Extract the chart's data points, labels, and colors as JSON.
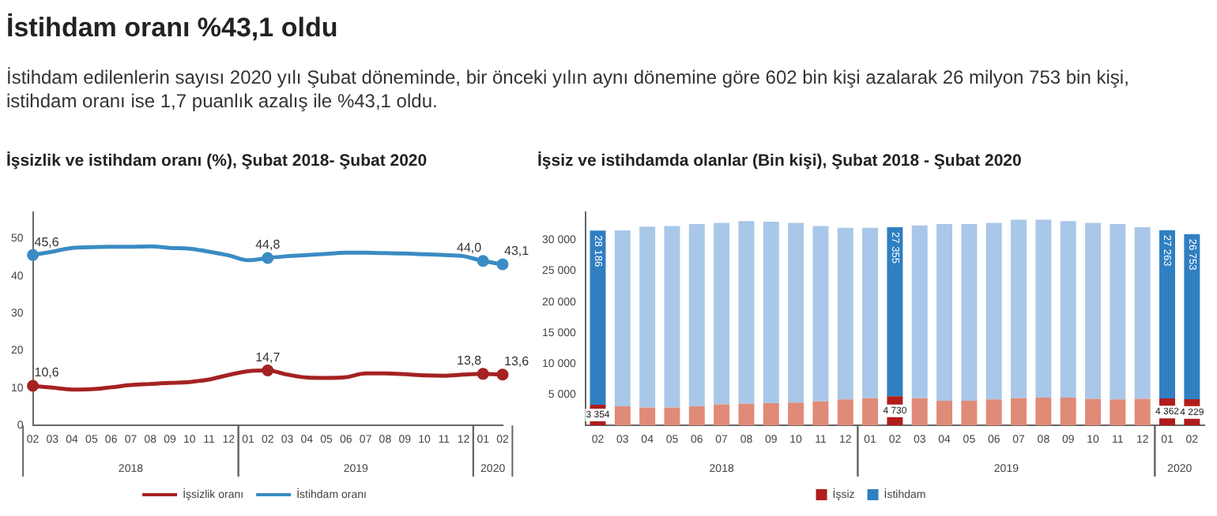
{
  "chart_data": [
    {
      "type": "other",
      "title": "İstihdam oranı %43,1 oldu",
      "annotations": [
        "İstihdam edilenlerin sayısı 2020 yılı Şubat döneminde, bir önceki yılın aynı dönemine göre 602 bin kişi azalarak 26 milyon 753 bin kişi, istihdam oranı ise 1,7 puanlık azalış ile %43,1 oldu."
      ]
    },
    {
      "type": "line",
      "title": "İşsizlik ve istihdam oranı (%), Şubat 2018- Şubat 2020",
      "categories": [
        "02",
        "03",
        "04",
        "05",
        "06",
        "07",
        "08",
        "09",
        "10",
        "11",
        "12",
        "01",
        "02",
        "03",
        "04",
        "05",
        "06",
        "07",
        "08",
        "09",
        "10",
        "11",
        "12",
        "01",
        "02"
      ],
      "annotations": [
        "2018",
        "2019",
        "2020"
      ],
      "legend": "bottom",
      "ylim": [
        0,
        57
      ],
      "yticks": [
        0,
        10,
        20,
        30,
        40,
        50
      ],
      "series": [
        {
          "name": "İşsizlik oranı",
          "color": "#a52222",
          "values": [
            10.6,
            10.1,
            9.6,
            9.7,
            10.2,
            10.8,
            11.1,
            11.4,
            11.6,
            12.3,
            13.5,
            14.5,
            14.7,
            13.6,
            12.8,
            12.7,
            12.9,
            13.9,
            13.9,
            13.7,
            13.4,
            13.3,
            13.6,
            13.8,
            13.6
          ],
          "value_labels": [
            "10,6",
            null,
            null,
            null,
            null,
            null,
            null,
            null,
            null,
            null,
            null,
            null,
            "14,7",
            null,
            null,
            null,
            null,
            null,
            null,
            null,
            null,
            null,
            null,
            "13,8",
            "13,6"
          ]
        },
        {
          "name": "İstihdam oranı",
          "color": "#3a8cc4",
          "values": [
            45.6,
            46.5,
            47.5,
            47.7,
            47.8,
            47.8,
            47.9,
            47.5,
            47.3,
            46.5,
            45.5,
            44.2,
            44.8,
            45.3,
            45.6,
            45.9,
            46.2,
            46.2,
            46.1,
            46.0,
            45.8,
            45.6,
            45.3,
            44.0,
            43.1
          ],
          "value_labels": [
            "45,6",
            null,
            null,
            null,
            null,
            null,
            null,
            null,
            null,
            null,
            null,
            null,
            "44,8",
            null,
            null,
            null,
            null,
            null,
            null,
            null,
            null,
            null,
            null,
            "44,0",
            "43,1"
          ]
        }
      ]
    },
    {
      "type": "bar",
      "stacked": true,
      "title": "İşsiz ve istihdamda olanlar (Bin kişi), Şubat 2018 - Şubat 2020",
      "categories": [
        "02",
        "03",
        "04",
        "05",
        "06",
        "07",
        "08",
        "09",
        "10",
        "11",
        "12",
        "01",
        "02",
        "03",
        "04",
        "05",
        "06",
        "07",
        "08",
        "09",
        "10",
        "11",
        "12",
        "01",
        "02"
      ],
      "annotations": [
        "2018",
        "2019",
        "2020"
      ],
      "legend": "bottom",
      "ylim": [
        0,
        34500
      ],
      "yticks": [
        {
          "value": 5000,
          "label": "5 000"
        },
        {
          "value": 10000,
          "label": "10 000"
        },
        {
          "value": 15000,
          "label": "15 000"
        },
        {
          "value": 20000,
          "label": "20 000"
        },
        {
          "value": 25000,
          "label": "25 000"
        },
        {
          "value": 30000,
          "label": "30 000"
        }
      ],
      "series": [
        {
          "name": "İşsiz",
          "color": "#b01c1c",
          "colors": [
            "#b01c1c",
            "#e08a78",
            "#e08a78",
            "#e08a78",
            "#e08a78",
            "#e08a78",
            "#e08a78",
            "#e08a78",
            "#e08a78",
            "#e08a78",
            "#e08a78",
            "#e08a78",
            "#b01c1c",
            "#e08a78",
            "#e08a78",
            "#e08a78",
            "#e08a78",
            "#e08a78",
            "#e08a78",
            "#e08a78",
            "#e08a78",
            "#e08a78",
            "#e08a78",
            "#b01c1c",
            "#b01c1c"
          ],
          "values": [
            3354,
            3100,
            2900,
            2900,
            3100,
            3400,
            3500,
            3600,
            3700,
            3900,
            4200,
            4400,
            4730,
            4400,
            4000,
            4000,
            4200,
            4400,
            4500,
            4500,
            4300,
            4200,
            4300,
            4362,
            4229
          ],
          "value_labels": [
            "3 354",
            null,
            null,
            null,
            null,
            null,
            null,
            null,
            null,
            null,
            null,
            null,
            "4 730",
            null,
            null,
            null,
            null,
            null,
            null,
            null,
            null,
            null,
            null,
            "4 362",
            "4 229"
          ]
        },
        {
          "name": "İstihdam",
          "color": "#2f7fc1",
          "colors": [
            "#2f7fc1",
            "#a9c7e8",
            "#a9c7e8",
            "#a9c7e8",
            "#a9c7e8",
            "#a9c7e8",
            "#a9c7e8",
            "#a9c7e8",
            "#a9c7e8",
            "#a9c7e8",
            "#a9c7e8",
            "#a9c7e8",
            "#2f7fc1",
            "#a9c7e8",
            "#a9c7e8",
            "#a9c7e8",
            "#a9c7e8",
            "#a9c7e8",
            "#a9c7e8",
            "#a9c7e8",
            "#a9c7e8",
            "#a9c7e8",
            "#a9c7e8",
            "#2f7fc1",
            "#2f7fc1"
          ],
          "values": [
            28186,
            28500,
            29300,
            29400,
            29500,
            29400,
            29600,
            29400,
            29100,
            28400,
            27800,
            27600,
            27355,
            28000,
            28600,
            28600,
            28600,
            28900,
            28800,
            28600,
            28500,
            28400,
            27800,
            27263,
            26753
          ],
          "value_labels": [
            "28 186",
            null,
            null,
            null,
            null,
            null,
            null,
            null,
            null,
            null,
            null,
            null,
            "27 355",
            null,
            null,
            null,
            null,
            null,
            null,
            null,
            null,
            null,
            null,
            "27 263",
            "26 753"
          ]
        }
      ]
    }
  ]
}
